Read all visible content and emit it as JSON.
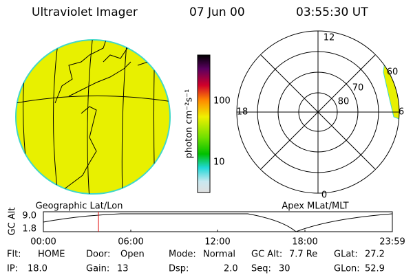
{
  "header": {
    "title": "Ultraviolet Imager",
    "date": "07 Jun 00",
    "time": "03:55:30 UT"
  },
  "colorbar": {
    "label": "photon cm⁻²s⁻¹",
    "ticks": [
      "100",
      "10"
    ]
  },
  "polar": {
    "top": "12",
    "left": "18",
    "right": "6",
    "bottom": "0",
    "rings": [
      "60",
      "70",
      "80"
    ]
  },
  "panel_labels": [
    "Geographic Lat/Lon",
    "Apex MLat/MLT"
  ],
  "altitude": {
    "label": "GC Alt",
    "yticks": [
      "9.0",
      "1.8"
    ],
    "xticks": [
      "00:00",
      "06:00",
      "12:00",
      "18:00",
      "23:59"
    ]
  },
  "status": [
    [
      {
        "label": "Flt:",
        "value": "HOME"
      },
      {
        "label": "Door:",
        "value": "Open"
      },
      {
        "label": "Mode:",
        "value": "Normal"
      },
      {
        "label": "GC Alt:",
        "value": "7.7 Re"
      },
      {
        "label": "GLat:",
        "value": "27.2"
      }
    ],
    [
      {
        "label": "IP:",
        "value": "18.0"
      },
      {
        "label": "Gain:",
        "value": "13"
      },
      {
        "label": "Dsp:",
        "value": "2.0"
      },
      {
        "label": "Seq:",
        "value": "30"
      },
      {
        "label": "GLon:",
        "value": "52.9"
      }
    ]
  ]
}
